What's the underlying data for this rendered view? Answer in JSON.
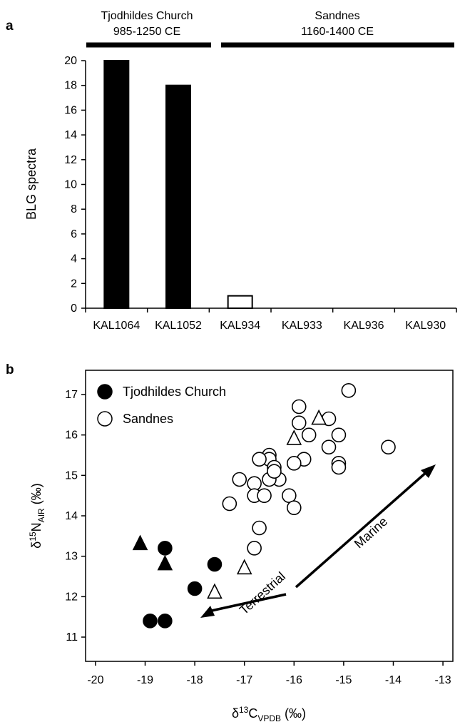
{
  "panel_a": {
    "letter": "a",
    "periods": [
      {
        "name": "Tjodhildes Church",
        "dates": "985-1250 CE"
      },
      {
        "name": "Sandnes",
        "dates": "1160-1400 CE"
      }
    ]
  },
  "panel_b": {
    "letter": "b",
    "legend": [
      "Tjodhildes Church",
      "Sandnes"
    ],
    "arrow_labels": {
      "marine": "Marine",
      "terrestrial": "Terrestrial"
    }
  },
  "colors": {
    "filled": "#000000",
    "open": "#ffffff",
    "stroke": "#000000"
  },
  "chart_data": [
    {
      "type": "bar",
      "title": "",
      "xlabel": "",
      "ylabel": "BLG spectra",
      "ylim": [
        0,
        20
      ],
      "yticks": [
        0,
        2,
        4,
        6,
        8,
        10,
        12,
        14,
        16,
        18,
        20
      ],
      "categories": [
        "KAL1064",
        "KAL1052",
        "KAL934",
        "KAL933",
        "KAL936",
        "KAL930"
      ],
      "values": [
        20,
        18,
        1,
        0,
        0,
        0
      ],
      "group": [
        "Tjodhildes Church",
        "Tjodhildes Church",
        "Sandnes",
        "Sandnes",
        "Sandnes",
        "Sandnes"
      ],
      "fill": [
        "filled",
        "filled",
        "open",
        "open",
        "open",
        "open"
      ]
    },
    {
      "type": "scatter",
      "title": "",
      "xlabel": {
        "main": "δ",
        "sup": "13",
        "mid": "C",
        "sub": "VPDB",
        "unit": " (‰)"
      },
      "ylabel": {
        "main": "δ",
        "sup": "15",
        "mid": "N",
        "sub": "AIR",
        "unit": " (‰)"
      },
      "xlim": [
        -20.2,
        -12.8
      ],
      "ylim": [
        10.4,
        17.6
      ],
      "xticks": [
        -20,
        -19,
        -18,
        -17,
        -16,
        -15,
        -14,
        -13
      ],
      "yticks": [
        11,
        12,
        13,
        14,
        15,
        16,
        17
      ],
      "series": [
        {
          "name": "Tjodhildes Church",
          "marker": "circle",
          "fill": "filled",
          "points": [
            [
              -18.6,
              13.2
            ],
            [
              -17.6,
              12.8
            ],
            [
              -18.0,
              12.2
            ],
            [
              -18.9,
              11.4
            ],
            [
              -18.6,
              11.4
            ]
          ]
        },
        {
          "name": "",
          "marker": "triangle",
          "fill": "filled",
          "points": [
            [
              -19.1,
              13.3
            ],
            [
              -18.6,
              12.8
            ]
          ]
        },
        {
          "name": "Sandnes",
          "marker": "circle",
          "fill": "open",
          "points": [
            [
              -14.9,
              17.1
            ],
            [
              -15.9,
              16.7
            ],
            [
              -15.9,
              16.3
            ],
            [
              -15.7,
              16.0
            ],
            [
              -15.3,
              16.4
            ],
            [
              -15.1,
              16.0
            ],
            [
              -15.3,
              15.7
            ],
            [
              -15.1,
              15.3
            ],
            [
              -15.1,
              15.2
            ],
            [
              -14.1,
              15.7
            ],
            [
              -15.8,
              15.4
            ],
            [
              -16.0,
              15.3
            ],
            [
              -16.5,
              15.5
            ],
            [
              -16.5,
              15.4
            ],
            [
              -16.7,
              15.4
            ],
            [
              -16.4,
              15.2
            ],
            [
              -16.3,
              14.9
            ],
            [
              -16.5,
              14.9
            ],
            [
              -16.4,
              15.1
            ],
            [
              -16.8,
              14.8
            ],
            [
              -16.8,
              14.5
            ],
            [
              -16.6,
              14.5
            ],
            [
              -17.1,
              14.9
            ],
            [
              -17.3,
              14.3
            ],
            [
              -16.1,
              14.5
            ],
            [
              -16.0,
              14.2
            ],
            [
              -16.7,
              13.7
            ],
            [
              -16.8,
              13.2
            ]
          ]
        },
        {
          "name": "",
          "marker": "triangle",
          "fill": "open",
          "points": [
            [
              -16.0,
              15.9
            ],
            [
              -15.5,
              16.4
            ],
            [
              -17.0,
              12.7
            ],
            [
              -17.6,
              12.1
            ]
          ]
        }
      ]
    }
  ]
}
